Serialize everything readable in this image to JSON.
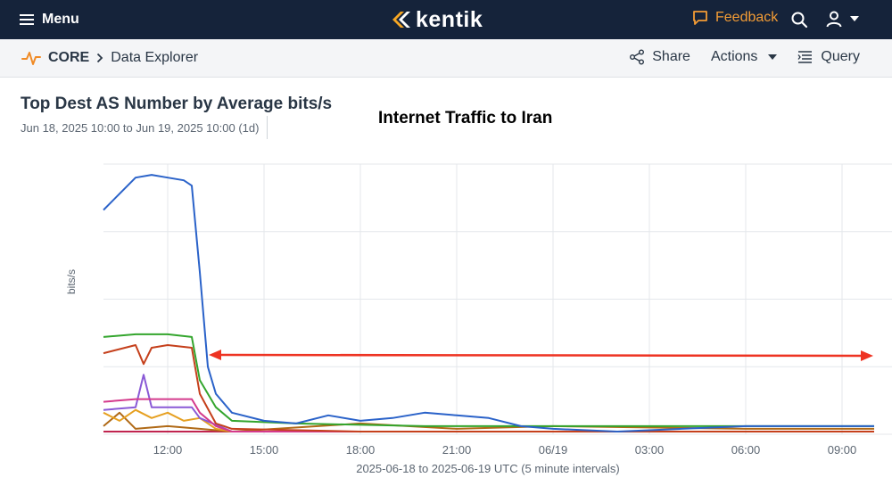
{
  "topbar": {
    "menu_label": "Menu",
    "logo_text": "kentik",
    "feedback_label": "Feedback",
    "feedback_color": "#f39c35",
    "background_color": "#15233a"
  },
  "breadcrumb": {
    "app_icon": "pulse-icon",
    "root": "CORE",
    "separator_icon": "chevron-right-icon",
    "current": "Data Explorer"
  },
  "toolbar": {
    "share_label": "Share",
    "actions_label": "Actions",
    "query_label": "Query"
  },
  "panel": {
    "title": "Top Dest AS Number by Average bits/s",
    "subtitle": "Jun 18, 2025 10:00 to Jun 19, 2025 10:00 (1d)",
    "annotation": "Internet Traffic to Iran",
    "annotation_arrow_color": "#ee3322"
  },
  "chart_data": {
    "type": "line",
    "title": "Top Dest AS Number by Average bits/s",
    "xlabel": "2025-06-18 to 2025-06-19 UTC (5 minute intervals)",
    "ylabel": "bits/s",
    "x_tick_labels": [
      "12:00",
      "15:00",
      "18:00",
      "21:00",
      "06/19",
      "03:00",
      "06:00",
      "09:00"
    ],
    "x_start": "2025-06-18 10:00",
    "x_end": "2025-06-19 10:00",
    "grid": true,
    "ylim": [
      0,
      100
    ],
    "series": [
      {
        "color": "#2a62c9",
        "x": [
          "2025-06-18 10:00",
          "2025-06-18 10:30",
          "2025-06-18 11:00",
          "2025-06-18 11:30",
          "2025-06-18 12:00",
          "2025-06-18 12:30",
          "2025-06-18 12:45",
          "2025-06-18 13:00",
          "2025-06-18 13:15",
          "2025-06-18 13:30",
          "2025-06-18 14:00",
          "2025-06-18 15:00",
          "2025-06-18 16:00",
          "2025-06-18 17:00",
          "2025-06-18 18:00",
          "2025-06-18 19:00",
          "2025-06-18 20:00",
          "2025-06-18 21:00",
          "2025-06-18 22:00",
          "2025-06-18 23:00",
          "2025-06-19 00:00",
          "2025-06-19 02:00",
          "2025-06-19 04:00",
          "2025-06-19 06:00",
          "2025-06-19 08:00",
          "2025-06-19 10:00"
        ],
        "values": [
          83,
          89,
          95,
          96,
          95,
          94,
          92,
          60,
          25,
          15,
          8,
          5,
          4,
          7,
          5,
          6,
          8,
          7,
          6,
          3,
          2,
          1,
          2,
          3,
          3,
          3
        ]
      },
      {
        "color": "#33a52d",
        "x": [
          "2025-06-18 10:00",
          "2025-06-18 11:00",
          "2025-06-18 12:00",
          "2025-06-18 12:45",
          "2025-06-18 13:00",
          "2025-06-18 13:30",
          "2025-06-18 14:00",
          "2025-06-18 16:00",
          "2025-06-18 20:00",
          "2025-06-19 00:00",
          "2025-06-19 04:00",
          "2025-06-19 08:00",
          "2025-06-19 10:00"
        ],
        "values": [
          36,
          37,
          37,
          36,
          20,
          10,
          5,
          4,
          3,
          3,
          3,
          3,
          3
        ]
      },
      {
        "color": "#c5401c",
        "x": [
          "2025-06-18 10:00",
          "2025-06-18 11:00",
          "2025-06-18 11:15",
          "2025-06-18 11:30",
          "2025-06-18 12:00",
          "2025-06-18 12:45",
          "2025-06-18 13:00",
          "2025-06-18 13:30",
          "2025-06-18 14:00",
          "2025-06-18 18:00",
          "2025-06-19 00:00",
          "2025-06-19 10:00"
        ],
        "values": [
          30,
          33,
          26,
          32,
          33,
          32,
          15,
          4,
          2,
          1,
          1,
          1
        ]
      },
      {
        "color": "#d43a8c",
        "x": [
          "2025-06-18 10:00",
          "2025-06-18 11:00",
          "2025-06-18 12:00",
          "2025-06-18 12:45",
          "2025-06-18 13:00",
          "2025-06-18 13:30",
          "2025-06-18 14:00",
          "2025-06-19 10:00"
        ],
        "values": [
          12,
          13,
          13,
          13,
          8,
          3,
          1,
          1
        ]
      },
      {
        "color": "#8a5ad6",
        "x": [
          "2025-06-18 10:00",
          "2025-06-18 11:00",
          "2025-06-18 11:15",
          "2025-06-18 11:30",
          "2025-06-18 12:00",
          "2025-06-18 12:45",
          "2025-06-18 13:00",
          "2025-06-18 14:00",
          "2025-06-19 10:00"
        ],
        "values": [
          9,
          10,
          22,
          10,
          10,
          10,
          6,
          1,
          1
        ]
      },
      {
        "color": "#e6a021",
        "x": [
          "2025-06-18 10:00",
          "2025-06-18 10:30",
          "2025-06-18 11:00",
          "2025-06-18 11:30",
          "2025-06-18 12:00",
          "2025-06-18 12:30",
          "2025-06-18 13:00",
          "2025-06-18 13:30",
          "2025-06-18 14:00",
          "2025-06-19 10:00"
        ],
        "values": [
          8,
          5,
          9,
          6,
          8,
          5,
          6,
          2,
          1,
          1
        ]
      },
      {
        "color": "#b06a17",
        "x": [
          "2025-06-18 10:00",
          "2025-06-18 10:30",
          "2025-06-18 11:00",
          "2025-06-18 12:00",
          "2025-06-18 13:00",
          "2025-06-18 14:00",
          "2025-06-18 18:00",
          "2025-06-18 21:00",
          "2025-06-19 00:00",
          "2025-06-19 06:00",
          "2025-06-19 10:00"
        ],
        "values": [
          3,
          8,
          2,
          3,
          2,
          1,
          4,
          2,
          3,
          2,
          2
        ]
      },
      {
        "color": "#c0244f",
        "x": [
          "2025-06-18 10:00",
          "2025-06-19 10:00"
        ],
        "values": [
          1,
          1
        ]
      }
    ]
  }
}
